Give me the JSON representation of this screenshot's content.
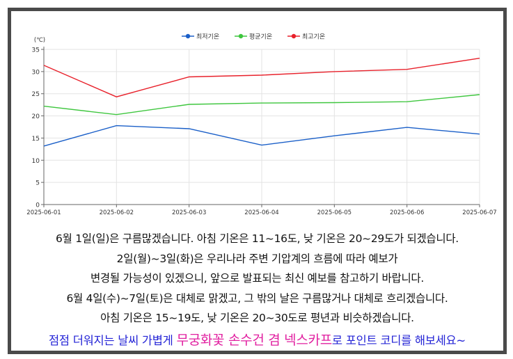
{
  "chart_data": {
    "type": "line",
    "unit_label": "(℃)",
    "x": [
      "2025-06-01",
      "2025-06-02",
      "2025-06-03",
      "2025-06-04",
      "2025-06-05",
      "2025-06-06",
      "2025-06-07"
    ],
    "x_tick_labels": [
      "2025-06-01",
      "2025-06-02",
      "2025-06-03",
      "2025-06-04",
      "2025-06-05",
      "2025-06-06",
      "2025-06-07"
    ],
    "ylim": [
      0,
      35
    ],
    "yticks": [
      0,
      5,
      10,
      15,
      20,
      25,
      30,
      35
    ],
    "grid": true,
    "legend_position": "top-center",
    "series": [
      {
        "name": "최저기온",
        "color": "#1a5fc8",
        "values": [
          13.2,
          17.8,
          17.1,
          13.4,
          15.5,
          17.4,
          15.9
        ]
      },
      {
        "name": "평균기온",
        "color": "#3ec63e",
        "values": [
          22.2,
          20.3,
          22.6,
          22.9,
          23.0,
          23.2,
          24.8
        ]
      },
      {
        "name": "최고기온",
        "color": "#e8212b",
        "values": [
          31.4,
          24.3,
          28.8,
          29.2,
          30.0,
          30.5,
          33.0
        ]
      }
    ]
  },
  "forecast": {
    "lines": [
      "6월 1일(일)은 구름많겠습니다. 아침 기온은 11~16도, 낮 기온은 20~29도가 되겠습니다.",
      "2일(월)~3일(화)은 우리나라 주변 기압계의 흐름에 따라 예보가",
      "변경될 가능성이 있겠으니, 앞으로 발표되는 최신 예보를 참고하기 바랍니다.",
      "6월 4일(수)~7일(토)은 대체로 맑겠고, 그 밖의 날은 구름많거나 대체로 흐리겠습니다.",
      "아침 기온은 15~19도, 낮 기온은 20~30도로 평년과 비슷하겠습니다."
    ],
    "promo_part1": "점점 더워지는 날씨 가볍게 ",
    "promo_highlight": "무궁화꽃 손수건 겸 넥스카프",
    "promo_part2": "로 포인트 코디를 해보세요~",
    "promo_colors": {
      "normal": "#2424d6",
      "highlight": "#e11fa0"
    }
  }
}
